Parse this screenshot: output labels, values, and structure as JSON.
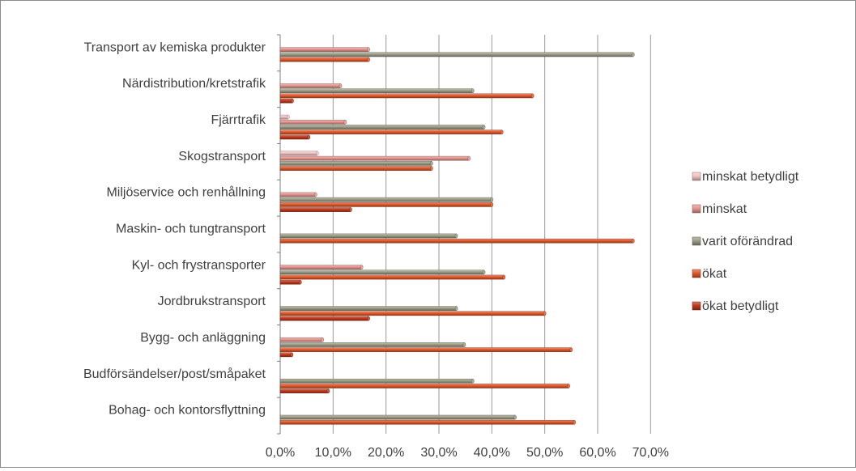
{
  "chart_data": {
    "type": "bar",
    "orientation": "horizontal",
    "style": "3d-cylinder",
    "title": "",
    "xlabel": "",
    "ylabel": "",
    "xlim": [
      0,
      70
    ],
    "x_ticks": [
      "0,0%",
      "10,0%",
      "20,0%",
      "30,0%",
      "40,0%",
      "50,0%",
      "60,0%",
      "70,0%"
    ],
    "grid": "vertical",
    "legend_position": "right",
    "categories": [
      "Transport av kemiska produkter",
      "Närdistribution/kretstrafik",
      "Fjärrtrafik",
      "Skogstransport",
      "Miljöservice och renhållning",
      "Maskin- och tungtransport",
      "Kyl- och frystransporter",
      "Jordbrukstransport",
      "Bygg- och anläggning",
      "Budförsändelser/post/småpaket",
      "Bohag- och kontorsflyttning"
    ],
    "series": [
      {
        "name": "minskat betydligt",
        "color": "#f2c4c4",
        "values": [
          0,
          0,
          1.5,
          7,
          0,
          0,
          0,
          0,
          0,
          0,
          0
        ]
      },
      {
        "name": "minskat",
        "color": "#e6958f",
        "values": [
          16.7,
          11.4,
          12.3,
          35.7,
          6.7,
          0,
          15.4,
          0,
          8.0,
          0,
          0
        ]
      },
      {
        "name": "varit oförändrad",
        "color": "#9c9c86",
        "values": [
          66.7,
          36.4,
          38.5,
          28.6,
          40.0,
          33.3,
          38.5,
          33.3,
          34.8,
          36.4,
          44.4
        ]
      },
      {
        "name": "ökat",
        "color": "#e2572a",
        "values": [
          16.7,
          47.7,
          41.9,
          28.6,
          40.0,
          66.7,
          42.3,
          50.0,
          55.0,
          54.5,
          55.6
        ]
      },
      {
        "name": "ökat betydligt",
        "color": "#c1391c",
        "values": [
          0,
          2.3,
          5.4,
          0,
          13.3,
          0,
          3.8,
          16.7,
          2.2,
          9.1,
          0
        ]
      }
    ]
  }
}
